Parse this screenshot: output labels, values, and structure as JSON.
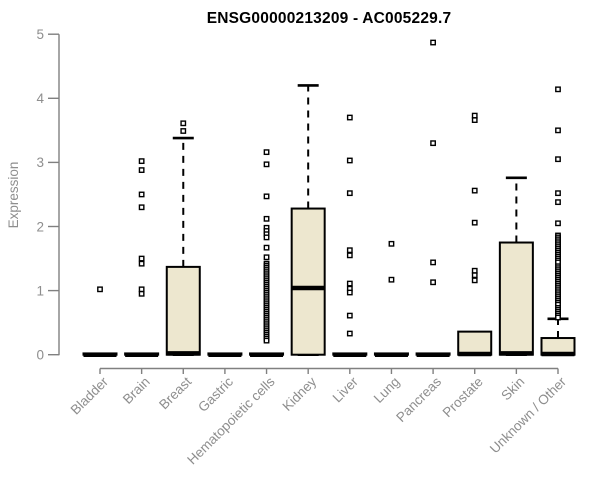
{
  "window": {
    "title": "ENSG00000213209 - AC005229.7"
  },
  "chart_data": {
    "type": "boxplot",
    "title": "ENSG00000213209 - AC005229.7",
    "xlabel": "",
    "ylabel": "Expression",
    "ylim": [
      0,
      5
    ],
    "yticks": [
      0,
      1,
      2,
      3,
      4,
      5
    ],
    "grid": false,
    "legend": "none",
    "colors": {
      "box_fill": "#EDE7CF",
      "box_stroke": "#000000",
      "outlier_stroke": "#000000",
      "axis_line": "#808080",
      "tick_label": "#8e8e8e",
      "title_color": "#000000",
      "background": "#ffffff"
    },
    "categories": [
      "Bladder",
      "Brain",
      "Breast",
      "Gastric",
      "Hematopoietic cells",
      "Kidney",
      "Liver",
      "Lung",
      "Pancreas",
      "Prostate",
      "Skin",
      "Unknown / Other"
    ],
    "series": [
      {
        "name": "Bladder",
        "q1": 0,
        "median": 0,
        "q3": 0.02,
        "whisker_low": 0,
        "whisker_high": 0.02,
        "outliers": [
          1.02
        ]
      },
      {
        "name": "Brain",
        "q1": 0,
        "median": 0,
        "q3": 0.02,
        "whisker_low": 0,
        "whisker_high": 0.02,
        "outliers": [
          3.02,
          2.88,
          2.5,
          2.3,
          1.5,
          1.42,
          1.02,
          0.95
        ]
      },
      {
        "name": "Breast",
        "q1": 0,
        "median": 0.02,
        "q3": 1.37,
        "whisker_low": 0,
        "whisker_high": 3.38,
        "outliers": [
          3.61,
          3.49
        ]
      },
      {
        "name": "Gastric",
        "q1": 0,
        "median": 0,
        "q3": 0.02,
        "whisker_low": 0,
        "whisker_high": 0.02,
        "outliers": []
      },
      {
        "name": "Hematopoietic cells",
        "q1": 0,
        "median": 0,
        "q3": 0.02,
        "whisker_low": 0,
        "whisker_high": 0.02,
        "outliers": [
          3.16,
          2.97,
          2.47,
          2.12,
          1.98,
          1.93,
          1.88,
          1.83,
          1.67,
          1.52,
          1.42,
          1.39,
          1.36,
          1.33,
          1.3,
          1.27,
          1.24,
          1.21,
          1.18,
          1.15,
          1.12,
          1.09,
          1.06,
          1.03,
          1.0,
          0.97,
          0.94,
          0.91,
          0.88,
          0.85,
          0.82,
          0.79,
          0.76,
          0.73,
          0.7,
          0.67,
          0.64,
          0.61,
          0.58,
          0.55,
          0.52,
          0.49,
          0.46,
          0.43,
          0.4,
          0.37,
          0.34,
          0.31,
          0.28,
          0.25,
          0.22
        ]
      },
      {
        "name": "Kidney",
        "q1": 0,
        "median": 1.04,
        "q3": 2.28,
        "whisker_low": 0,
        "whisker_high": 4.2,
        "outliers": []
      },
      {
        "name": "Liver",
        "q1": 0,
        "median": 0,
        "q3": 0.02,
        "whisker_low": 0,
        "whisker_high": 0.02,
        "outliers": [
          3.7,
          3.03,
          2.52,
          1.63,
          1.55,
          1.11,
          1.03,
          0.97,
          0.61,
          0.33
        ]
      },
      {
        "name": "Lung",
        "q1": 0,
        "median": 0,
        "q3": 0.02,
        "whisker_low": 0,
        "whisker_high": 0.02,
        "outliers": [
          1.73,
          1.17
        ]
      },
      {
        "name": "Pancreas",
        "q1": 0,
        "median": 0,
        "q3": 0.02,
        "whisker_low": 0,
        "whisker_high": 0.02,
        "outliers": [
          4.87,
          3.3,
          1.44,
          1.13
        ]
      },
      {
        "name": "Prostate",
        "q1": 0,
        "median": 0.01,
        "q3": 0.36,
        "whisker_low": 0,
        "whisker_high": 0.36,
        "outliers": [
          3.73,
          3.66,
          2.56,
          2.06,
          1.31,
          1.24,
          1.16
        ]
      },
      {
        "name": "Skin",
        "q1": 0,
        "median": 0.02,
        "q3": 1.75,
        "whisker_low": 0,
        "whisker_high": 2.76,
        "outliers": []
      },
      {
        "name": "Unknown / Other",
        "q1": 0,
        "median": 0.01,
        "q3": 0.26,
        "whisker_low": 0,
        "whisker_high": 0.56,
        "outliers": [
          4.14,
          3.5,
          3.05,
          2.52,
          2.38,
          2.05,
          1.86,
          1.83,
          1.8,
          1.77,
          1.74,
          1.71,
          1.68,
          1.65,
          1.62,
          1.59,
          1.56,
          1.53,
          1.5,
          1.47,
          1.44,
          1.38,
          1.35,
          1.32,
          1.29,
          1.26,
          1.23,
          1.2,
          1.17,
          1.14,
          1.11,
          1.08,
          1.05,
          1.02,
          0.99,
          0.96,
          0.93,
          0.9,
          0.87,
          0.84,
          0.81,
          0.78,
          0.73,
          0.7,
          0.67,
          0.64,
          0.61,
          0.58
        ]
      }
    ]
  }
}
